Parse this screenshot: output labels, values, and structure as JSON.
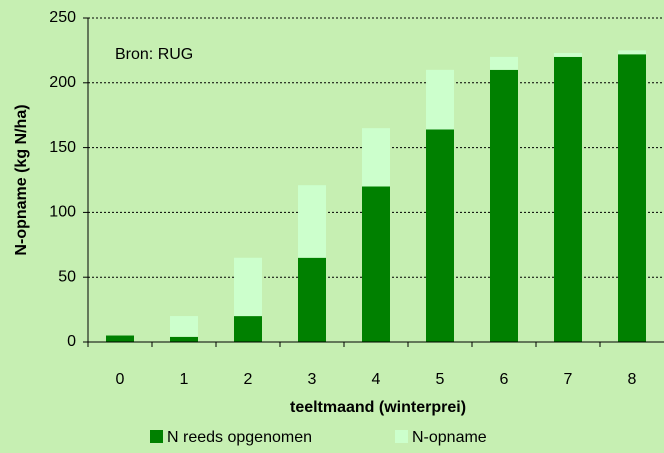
{
  "chart_data": {
    "type": "stacked_bar",
    "annotation": "Bron: RUG",
    "x_label": "teeltmaand (winterprei)",
    "y_label": "N-opname (kg N/ha)",
    "categories": [
      "0",
      "1",
      "2",
      "3",
      "4",
      "5",
      "6",
      "7",
      "8"
    ],
    "series": [
      {
        "name": "N reeds opgenomen",
        "color": "#008000",
        "values": [
          5,
          4,
          20,
          65,
          120,
          164,
          210,
          220,
          222
        ]
      },
      {
        "name": "N-opname",
        "color": "#ccffcc",
        "values": [
          0,
          16,
          45,
          56,
          45,
          46,
          10,
          3,
          3
        ]
      }
    ],
    "ylim": [
      0,
      250
    ],
    "yticks": [
      0,
      50,
      100,
      150,
      200,
      250
    ],
    "grid": true
  }
}
